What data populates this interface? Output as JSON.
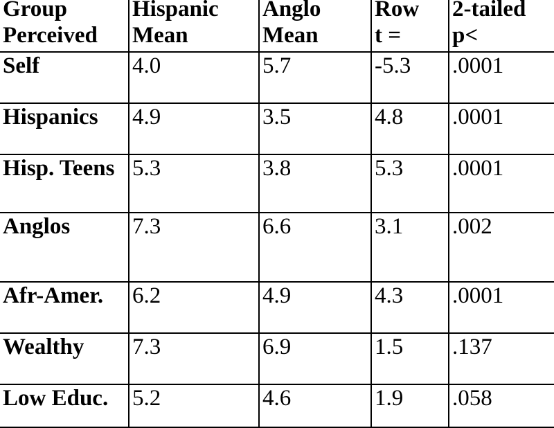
{
  "table": {
    "headers": [
      [
        "Group",
        "Perceived"
      ],
      [
        "Hispanic",
        "Mean"
      ],
      [
        "Anglo",
        "Mean"
      ],
      [
        "Row",
        "t ="
      ],
      [
        "2-tailed",
        "p<"
      ]
    ],
    "rows": [
      [
        "Self",
        "4.0",
        "5.7",
        "-5.3",
        ".0001"
      ],
      [
        "Hispanics",
        "4.9",
        "3.5",
        "4.8",
        ".0001"
      ],
      [
        "Hisp. Teens",
        "5.3",
        "3.8",
        "5.3",
        ".0001"
      ],
      [
        "Anglos",
        "7.3",
        "6.6",
        "3.1",
        ".002"
      ],
      [
        "Afr-Amer.",
        "6.2",
        "4.9",
        "4.3",
        ".0001"
      ],
      [
        "Wealthy",
        "7.3",
        "6.9",
        "1.5",
        ".137"
      ],
      [
        "Low Educ.",
        "5.2",
        "4.6",
        "1.9",
        ".058"
      ]
    ]
  },
  "chart_data": {
    "type": "table",
    "columns": [
      "Group Perceived",
      "Hispanic Mean",
      "Anglo Mean",
      "Row t =",
      "2-tailed p<"
    ],
    "rows": [
      {
        "group": "Self",
        "hispanic_mean": 4.0,
        "anglo_mean": 5.7,
        "t": -5.3,
        "p": ".0001"
      },
      {
        "group": "Hispanics",
        "hispanic_mean": 4.9,
        "anglo_mean": 3.5,
        "t": 4.8,
        "p": ".0001"
      },
      {
        "group": "Hisp. Teens",
        "hispanic_mean": 5.3,
        "anglo_mean": 3.8,
        "t": 5.3,
        "p": ".0001"
      },
      {
        "group": "Anglos",
        "hispanic_mean": 7.3,
        "anglo_mean": 6.6,
        "t": 3.1,
        "p": ".002"
      },
      {
        "group": "Afr-Amer.",
        "hispanic_mean": 6.2,
        "anglo_mean": 4.9,
        "t": 4.3,
        "p": ".0001"
      },
      {
        "group": "Wealthy",
        "hispanic_mean": 7.3,
        "anglo_mean": 6.9,
        "t": 1.5,
        "p": ".137"
      },
      {
        "group": "Low Educ.",
        "hispanic_mean": 5.2,
        "anglo_mean": 4.6,
        "t": 1.9,
        "p": ".058"
      }
    ]
  }
}
